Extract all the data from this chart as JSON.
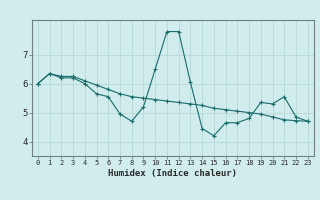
{
  "xlabel": "Humidex (Indice chaleur)",
  "ylabel": "",
  "background_color": "#d0ecec",
  "grid_color": "#b8d8d8",
  "line_color": "#1a6b6b",
  "x_labels": [
    "0",
    "1",
    "2",
    "3",
    "4",
    "5",
    "6",
    "7",
    "8",
    "9",
    "10",
    "11",
    "12",
    "13",
    "14",
    "15",
    "16",
    "17",
    "18",
    "19",
    "20",
    "21",
    "22",
    "23"
  ],
  "series1": [
    6.0,
    6.35,
    6.2,
    6.2,
    6.0,
    5.65,
    5.55,
    4.95,
    4.7,
    5.2,
    6.5,
    7.8,
    7.8,
    6.05,
    4.45,
    4.2,
    4.65,
    4.65,
    4.8,
    5.35,
    5.3,
    5.55,
    4.85,
    4.7
  ],
  "series2": [
    6.0,
    6.35,
    6.25,
    6.25,
    6.1,
    5.95,
    5.8,
    5.65,
    5.55,
    5.5,
    5.45,
    5.4,
    5.35,
    5.3,
    5.25,
    5.15,
    5.1,
    5.05,
    5.0,
    4.95,
    4.85,
    4.75,
    4.72,
    4.7
  ],
  "ylim": [
    3.5,
    8.2
  ],
  "yticks": [
    4,
    5,
    6,
    7
  ],
  "xlim": [
    -0.5,
    23.5
  ],
  "title_fontsize": 6.5
}
